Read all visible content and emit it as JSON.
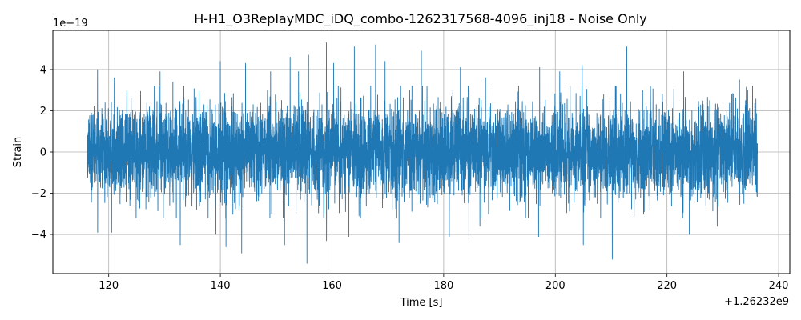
{
  "chart_data": {
    "type": "line",
    "title": "H-H1_O3ReplayMDC_iDQ_combo-1262317568-4096_inj18 - Noise Only",
    "xlabel": "Time [s]",
    "ylabel": "Strain",
    "x_offset_label": "+1.26232e9",
    "y_exponent_label": "1e−19",
    "xlim": [
      110,
      242
    ],
    "ylim": [
      -5.9,
      5.9
    ],
    "x_ticks": [
      120,
      140,
      160,
      180,
      200,
      220,
      240
    ],
    "x_tick_labels": [
      "120",
      "140",
      "160",
      "180",
      "200",
      "220",
      "240"
    ],
    "y_ticks": [
      -4,
      -2,
      0,
      2,
      4
    ],
    "y_tick_labels": [
      "−4",
      "−2",
      "0",
      "2",
      "4"
    ],
    "grid": true,
    "series": [
      {
        "color": "#1f77b4",
        "x_range": [
          116.2,
          236.2
        ],
        "y_typical_amplitude": 1.1,
        "y_max": 5.3,
        "y_min": -5.4,
        "peaks": [
          {
            "x": 118.0,
            "y": 4.0
          },
          {
            "x": 121.0,
            "y": 3.6
          },
          {
            "x": 129.2,
            "y": 3.9
          },
          {
            "x": 131.5,
            "y": 3.4
          },
          {
            "x": 140.0,
            "y": 4.4
          },
          {
            "x": 144.5,
            "y": 4.3
          },
          {
            "x": 149.0,
            "y": 3.9
          },
          {
            "x": 152.5,
            "y": 4.6
          },
          {
            "x": 154.0,
            "y": 3.9
          },
          {
            "x": 155.8,
            "y": 4.7
          },
          {
            "x": 159.0,
            "y": 5.3
          },
          {
            "x": 160.3,
            "y": 4.3
          },
          {
            "x": 164.0,
            "y": 5.1
          },
          {
            "x": 167.8,
            "y": 5.2
          },
          {
            "x": 169.5,
            "y": 4.4
          },
          {
            "x": 176.0,
            "y": 4.9
          },
          {
            "x": 183.0,
            "y": 4.1
          },
          {
            "x": 187.5,
            "y": 3.6
          },
          {
            "x": 197.2,
            "y": 4.1
          },
          {
            "x": 200.8,
            "y": 3.9
          },
          {
            "x": 204.8,
            "y": 4.2
          },
          {
            "x": 212.8,
            "y": 5.1
          },
          {
            "x": 223.0,
            "y": 3.9
          },
          {
            "x": 233.0,
            "y": 3.5
          }
        ],
        "troughs": [
          {
            "x": 118.0,
            "y": -3.9
          },
          {
            "x": 120.5,
            "y": -3.9
          },
          {
            "x": 132.8,
            "y": -4.5
          },
          {
            "x": 139.2,
            "y": -4.0
          },
          {
            "x": 141.0,
            "y": -4.6
          },
          {
            "x": 143.8,
            "y": -4.9
          },
          {
            "x": 151.5,
            "y": -4.5
          },
          {
            "x": 155.5,
            "y": -5.4
          },
          {
            "x": 159.0,
            "y": -4.3
          },
          {
            "x": 163.0,
            "y": -4.1
          },
          {
            "x": 172.0,
            "y": -4.4
          },
          {
            "x": 181.0,
            "y": -4.1
          },
          {
            "x": 184.5,
            "y": -4.3
          },
          {
            "x": 186.5,
            "y": -3.6
          },
          {
            "x": 197.0,
            "y": -4.1
          },
          {
            "x": 205.0,
            "y": -4.5
          },
          {
            "x": 210.2,
            "y": -5.2
          },
          {
            "x": 224.0,
            "y": -4.0
          },
          {
            "x": 229.0,
            "y": -3.6
          }
        ]
      }
    ]
  }
}
